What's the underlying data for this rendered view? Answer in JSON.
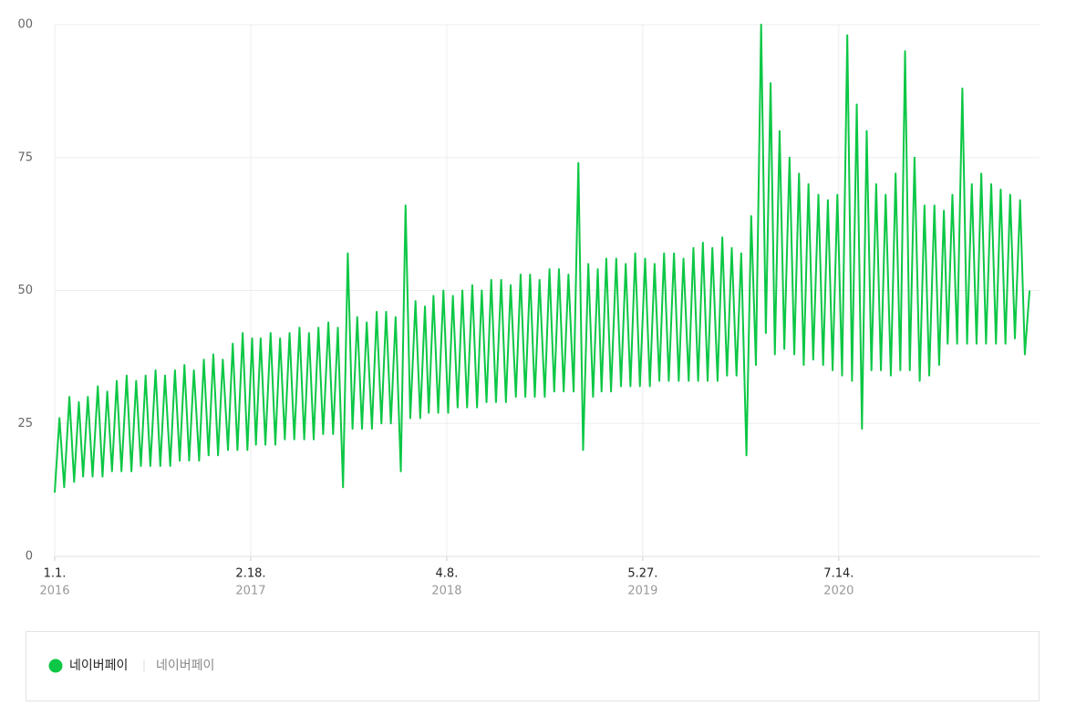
{
  "chart_data": {
    "type": "line",
    "ylim": [
      0,
      100
    ],
    "yticks": [
      0,
      25,
      50,
      75,
      {
        "value": 100,
        "label": "00"
      }
    ],
    "xlim": [
      "2016-01-01",
      "2021-09-11"
    ],
    "xticks": [
      {
        "value": "2016-01-01",
        "label": "1.1.",
        "year": "2016"
      },
      {
        "value": "2017-02-18",
        "label": "2.18.",
        "year": "2017"
      },
      {
        "value": "2018-04-08",
        "label": "4.8.",
        "year": "2018"
      },
      {
        "value": "2019-05-27",
        "label": "5.27.",
        "year": "2019"
      },
      {
        "value": "2020-07-14",
        "label": "7.14.",
        "year": "2020"
      }
    ],
    "grid": true,
    "legend_keyword": "네이버페이",
    "x": [
      "2016-01-01",
      "2016-01-11",
      "2016-01-21",
      "2016-02-01",
      "2016-02-11",
      "2016-02-21",
      "2016-03-01",
      "2016-03-11",
      "2016-03-21",
      "2016-04-01",
      "2016-04-11",
      "2016-04-21",
      "2016-05-01",
      "2016-05-11",
      "2016-05-21",
      "2016-06-01",
      "2016-06-11",
      "2016-06-21",
      "2016-07-01",
      "2016-07-11",
      "2016-07-21",
      "2016-08-01",
      "2016-08-11",
      "2016-08-21",
      "2016-09-01",
      "2016-09-11",
      "2016-09-21",
      "2016-10-01",
      "2016-10-11",
      "2016-10-21",
      "2016-11-01",
      "2016-11-11",
      "2016-11-21",
      "2016-12-01",
      "2016-12-11",
      "2016-12-21",
      "2017-01-01",
      "2017-01-11",
      "2017-01-21",
      "2017-02-01",
      "2017-02-11",
      "2017-02-21",
      "2017-03-01",
      "2017-03-11",
      "2017-03-21",
      "2017-04-01",
      "2017-04-11",
      "2017-04-21",
      "2017-05-01",
      "2017-05-11",
      "2017-05-21",
      "2017-06-01",
      "2017-06-11",
      "2017-06-21",
      "2017-07-01",
      "2017-07-11",
      "2017-07-21",
      "2017-08-01",
      "2017-08-11",
      "2017-08-21",
      "2017-09-01",
      "2017-09-11",
      "2017-09-21",
      "2017-10-01",
      "2017-10-11",
      "2017-10-21",
      "2017-11-01",
      "2017-11-11",
      "2017-11-21",
      "2017-12-01",
      "2017-12-11",
      "2017-12-21",
      "2018-01-01",
      "2018-01-11",
      "2018-01-21",
      "2018-02-01",
      "2018-02-11",
      "2018-02-21",
      "2018-03-01",
      "2018-03-11",
      "2018-03-21",
      "2018-04-01",
      "2018-04-11",
      "2018-04-21",
      "2018-05-01",
      "2018-05-11",
      "2018-05-21",
      "2018-06-01",
      "2018-06-11",
      "2018-06-21",
      "2018-07-01",
      "2018-07-11",
      "2018-07-21",
      "2018-08-01",
      "2018-08-11",
      "2018-08-21",
      "2018-09-01",
      "2018-09-11",
      "2018-09-21",
      "2018-10-01",
      "2018-10-11",
      "2018-10-21",
      "2018-11-01",
      "2018-11-11",
      "2018-11-21",
      "2018-12-01",
      "2018-12-11",
      "2018-12-21",
      "2019-01-01",
      "2019-01-11",
      "2019-01-21",
      "2019-02-01",
      "2019-02-11",
      "2019-02-21",
      "2019-03-01",
      "2019-03-11",
      "2019-03-21",
      "2019-04-01",
      "2019-04-11",
      "2019-04-21",
      "2019-05-01",
      "2019-05-11",
      "2019-05-21",
      "2019-06-01",
      "2019-06-11",
      "2019-06-21",
      "2019-07-01",
      "2019-07-11",
      "2019-07-21",
      "2019-08-01",
      "2019-08-11",
      "2019-08-21",
      "2019-09-01",
      "2019-09-11",
      "2019-09-21",
      "2019-10-01",
      "2019-10-11",
      "2019-10-21",
      "2019-11-01",
      "2019-11-11",
      "2019-11-21",
      "2019-12-01",
      "2019-12-11",
      "2019-12-21",
      "2020-01-01",
      "2020-01-11",
      "2020-01-21",
      "2020-02-01",
      "2020-02-11",
      "2020-02-21",
      "2020-03-01",
      "2020-03-11",
      "2020-03-21",
      "2020-04-01",
      "2020-04-11",
      "2020-04-21",
      "2020-05-01",
      "2020-05-11",
      "2020-05-21",
      "2020-06-01",
      "2020-06-11",
      "2020-06-21",
      "2020-07-01",
      "2020-07-11",
      "2020-07-21",
      "2020-08-01",
      "2020-08-11",
      "2020-08-21",
      "2020-09-01",
      "2020-09-11",
      "2020-09-21",
      "2020-10-01",
      "2020-10-11",
      "2020-10-21",
      "2020-11-01",
      "2020-11-11",
      "2020-11-21",
      "2020-12-01",
      "2020-12-11",
      "2020-12-21",
      "2021-01-01",
      "2021-01-11",
      "2021-01-21",
      "2021-02-01",
      "2021-02-11",
      "2021-02-21",
      "2021-03-01",
      "2021-03-11",
      "2021-03-21",
      "2021-04-01",
      "2021-04-11",
      "2021-04-21",
      "2021-05-01",
      "2021-05-11",
      "2021-05-21",
      "2021-06-01",
      "2021-06-11",
      "2021-06-21",
      "2021-07-01",
      "2021-07-11",
      "2021-07-21",
      "2021-08-01",
      "2021-08-11",
      "2021-08-21"
    ],
    "series": [
      {
        "name": "네이버페이",
        "color": "#0cc745",
        "values": [
          12,
          26,
          13,
          30,
          14,
          29,
          15,
          30,
          15,
          32,
          15,
          31,
          16,
          33,
          16,
          34,
          16,
          33,
          17,
          34,
          17,
          35,
          17,
          34,
          17,
          35,
          18,
          36,
          18,
          35,
          18,
          37,
          19,
          38,
          19,
          37,
          20,
          40,
          20,
          42,
          20,
          41,
          21,
          41,
          21,
          42,
          21,
          41,
          22,
          42,
          22,
          43,
          22,
          42,
          22,
          43,
          23,
          44,
          23,
          43,
          13,
          57,
          24,
          45,
          24,
          44,
          24,
          46,
          25,
          46,
          25,
          45,
          16,
          66,
          26,
          48,
          26,
          47,
          27,
          49,
          27,
          50,
          27,
          49,
          28,
          50,
          28,
          51,
          28,
          50,
          29,
          52,
          29,
          52,
          29,
          51,
          30,
          53,
          30,
          53,
          30,
          52,
          30,
          54,
          31,
          54,
          31,
          53,
          31,
          74,
          20,
          55,
          30,
          54,
          31,
          56,
          31,
          56,
          32,
          55,
          32,
          57,
          32,
          56,
          32,
          55,
          33,
          57,
          33,
          57,
          33,
          56,
          33,
          58,
          33,
          59,
          33,
          58,
          33,
          60,
          34,
          58,
          34,
          57,
          19,
          64,
          36,
          100,
          42,
          89,
          38,
          80,
          39,
          75,
          38,
          72,
          36,
          70,
          37,
          68,
          36,
          67,
          35,
          68,
          34,
          98,
          33,
          85,
          24,
          80,
          35,
          70,
          35,
          68,
          34,
          72,
          35,
          95,
          35,
          75,
          33,
          66,
          34,
          66,
          36,
          65,
          40,
          68,
          40,
          88,
          40,
          70,
          40,
          72,
          40,
          70,
          40,
          69,
          40,
          68,
          41,
          67,
          38,
          50
        ]
      }
    ]
  }
}
